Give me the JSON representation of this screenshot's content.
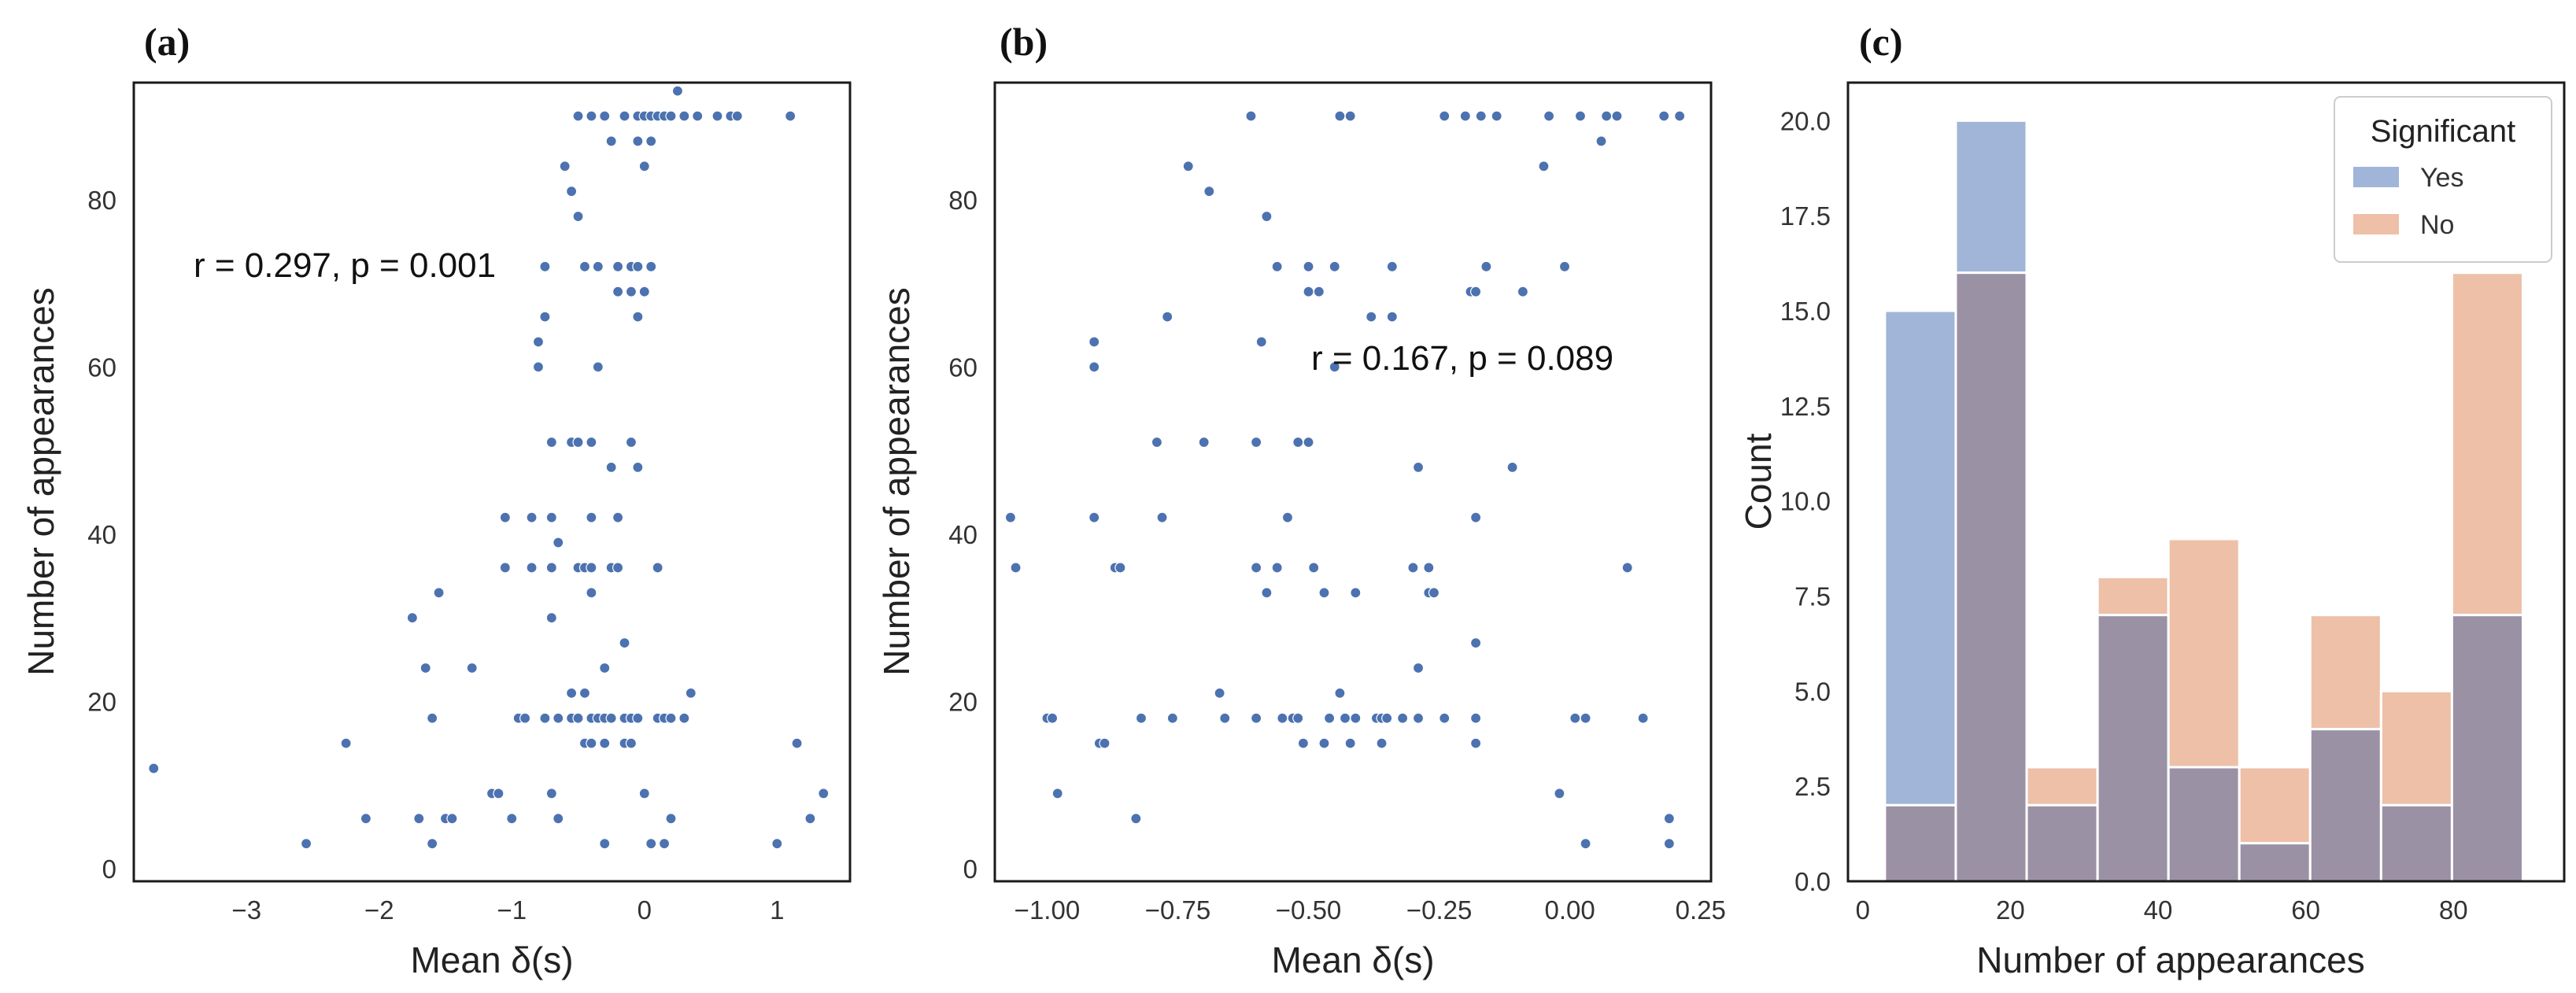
{
  "chart_data": [
    {
      "type": "scatter",
      "panel_label": "(a)",
      "xlabel": "Mean δ(s)",
      "ylabel": "Number of appearances",
      "xlim": [
        -3.85,
        1.55
      ],
      "ylim": [
        -1.5,
        94
      ],
      "xticks": [
        -3,
        -2,
        -1,
        0,
        1
      ],
      "yticks": [
        0,
        20,
        40,
        60,
        80
      ],
      "annotation": "r = 0.297, p = 0.001",
      "marker_color": "#4c72b0",
      "points": [
        [
          -3.7,
          12
        ],
        [
          -2.55,
          3
        ],
        [
          -2.25,
          15
        ],
        [
          -2.1,
          6
        ],
        [
          -1.75,
          30
        ],
        [
          -1.7,
          6
        ],
        [
          -1.65,
          24
        ],
        [
          -1.6,
          3
        ],
        [
          -1.6,
          18
        ],
        [
          -1.55,
          33
        ],
        [
          -1.5,
          6
        ],
        [
          -1.45,
          6
        ],
        [
          -1.3,
          24
        ],
        [
          -1.15,
          9
        ],
        [
          -1.1,
          9
        ],
        [
          -1.05,
          42
        ],
        [
          -1.05,
          36
        ],
        [
          -1.0,
          6
        ],
        [
          -0.95,
          18
        ],
        [
          -0.9,
          18
        ],
        [
          -0.85,
          36
        ],
        [
          -0.85,
          42
        ],
        [
          -0.8,
          63
        ],
        [
          -0.8,
          60
        ],
        [
          -0.75,
          66
        ],
        [
          -0.75,
          72
        ],
        [
          -0.75,
          18
        ],
        [
          -0.7,
          51
        ],
        [
          -0.7,
          9
        ],
        [
          -0.7,
          42
        ],
        [
          -0.7,
          36
        ],
        [
          -0.7,
          30
        ],
        [
          -0.65,
          6
        ],
        [
          -0.65,
          18
        ],
        [
          -0.65,
          39
        ],
        [
          -0.6,
          84
        ],
        [
          -0.55,
          81
        ],
        [
          -0.55,
          21
        ],
        [
          -0.55,
          18
        ],
        [
          -0.55,
          51
        ],
        [
          -0.5,
          36
        ],
        [
          -0.5,
          78
        ],
        [
          -0.5,
          90
        ],
        [
          -0.5,
          51
        ],
        [
          -0.5,
          18
        ],
        [
          -0.45,
          36
        ],
        [
          -0.45,
          15
        ],
        [
          -0.45,
          72
        ],
        [
          -0.45,
          21
        ],
        [
          -0.4,
          90
        ],
        [
          -0.4,
          33
        ],
        [
          -0.4,
          51
        ],
        [
          -0.4,
          18
        ],
        [
          -0.4,
          36
        ],
        [
          -0.4,
          42
        ],
        [
          -0.4,
          15
        ],
        [
          -0.35,
          72
        ],
        [
          -0.35,
          60
        ],
        [
          -0.35,
          18
        ],
        [
          -0.3,
          90
        ],
        [
          -0.3,
          18
        ],
        [
          -0.3,
          24
        ],
        [
          -0.3,
          3
        ],
        [
          -0.3,
          15
        ],
        [
          -0.25,
          87
        ],
        [
          -0.25,
          36
        ],
        [
          -0.25,
          18
        ],
        [
          -0.25,
          48
        ],
        [
          -0.2,
          36
        ],
        [
          -0.2,
          72
        ],
        [
          -0.2,
          42
        ],
        [
          -0.2,
          69
        ],
        [
          -0.15,
          90
        ],
        [
          -0.15,
          27
        ],
        [
          -0.15,
          18
        ],
        [
          -0.15,
          18
        ],
        [
          -0.15,
          15
        ],
        [
          -0.1,
          51
        ],
        [
          -0.1,
          18
        ],
        [
          -0.1,
          69
        ],
        [
          -0.1,
          72
        ],
        [
          -0.1,
          15
        ],
        [
          -0.05,
          90
        ],
        [
          -0.05,
          87
        ],
        [
          -0.05,
          72
        ],
        [
          -0.05,
          18
        ],
        [
          -0.05,
          66
        ],
        [
          -0.05,
          48
        ],
        [
          0.0,
          90
        ],
        [
          0.0,
          84
        ],
        [
          0.0,
          69
        ],
        [
          0.0,
          9
        ],
        [
          0.05,
          87
        ],
        [
          0.05,
          72
        ],
        [
          0.05,
          90
        ],
        [
          0.05,
          3
        ],
        [
          0.1,
          90
        ],
        [
          0.1,
          36
        ],
        [
          0.1,
          18
        ],
        [
          0.15,
          90
        ],
        [
          0.15,
          18
        ],
        [
          0.15,
          3
        ],
        [
          0.2,
          90
        ],
        [
          0.2,
          18
        ],
        [
          0.2,
          6
        ],
        [
          0.25,
          93
        ],
        [
          0.3,
          90
        ],
        [
          0.3,
          18
        ],
        [
          0.35,
          21
        ],
        [
          0.4,
          90
        ],
        [
          0.55,
          90
        ],
        [
          0.65,
          90
        ],
        [
          0.7,
          90
        ],
        [
          1.0,
          3
        ],
        [
          1.1,
          90
        ],
        [
          1.15,
          15
        ],
        [
          1.25,
          6
        ],
        [
          1.35,
          9
        ]
      ]
    },
    {
      "type": "scatter",
      "panel_label": "(b)",
      "xlabel": "Mean δ(s)",
      "ylabel": "Number of appearances",
      "xlim": [
        -1.1,
        0.27
      ],
      "ylim": [
        -1.5,
        94
      ],
      "xticks": [
        -1.0,
        -0.75,
        -0.5,
        -0.25,
        0.0,
        0.25
      ],
      "xtick_labels": [
        "−1.00",
        "−0.75",
        "−0.50",
        "−0.25",
        "0.00",
        "0.25"
      ],
      "yticks": [
        0,
        20,
        40,
        60,
        80
      ],
      "annotation": "r = 0.167, p = 0.089",
      "marker_color": "#4c72b0",
      "points": [
        [
          -1.07,
          42
        ],
        [
          -1.06,
          36
        ],
        [
          -1.0,
          18
        ],
        [
          -0.99,
          18
        ],
        [
          -0.98,
          9
        ],
        [
          -0.91,
          63
        ],
        [
          -0.91,
          60
        ],
        [
          -0.91,
          42
        ],
        [
          -0.9,
          15
        ],
        [
          -0.89,
          15
        ],
        [
          -0.87,
          36
        ],
        [
          -0.86,
          36
        ],
        [
          -0.83,
          6
        ],
        [
          -0.82,
          18
        ],
        [
          -0.79,
          51
        ],
        [
          -0.78,
          42
        ],
        [
          -0.77,
          66
        ],
        [
          -0.76,
          18
        ],
        [
          -0.73,
          84
        ],
        [
          -0.7,
          51
        ],
        [
          -0.69,
          81
        ],
        [
          -0.67,
          21
        ],
        [
          -0.66,
          18
        ],
        [
          -0.61,
          90
        ],
        [
          -0.6,
          51
        ],
        [
          -0.6,
          36
        ],
        [
          -0.6,
          18
        ],
        [
          -0.59,
          63
        ],
        [
          -0.58,
          78
        ],
        [
          -0.58,
          33
        ],
        [
          -0.56,
          72
        ],
        [
          -0.56,
          36
        ],
        [
          -0.55,
          18
        ],
        [
          -0.54,
          42
        ],
        [
          -0.53,
          18
        ],
        [
          -0.52,
          51
        ],
        [
          -0.52,
          18
        ],
        [
          -0.51,
          15
        ],
        [
          -0.5,
          72
        ],
        [
          -0.5,
          69
        ],
        [
          -0.5,
          51
        ],
        [
          -0.49,
          36
        ],
        [
          -0.48,
          69
        ],
        [
          -0.47,
          15
        ],
        [
          -0.47,
          33
        ],
        [
          -0.46,
          18
        ],
        [
          -0.45,
          72
        ],
        [
          -0.45,
          60
        ],
        [
          -0.44,
          90
        ],
        [
          -0.44,
          21
        ],
        [
          -0.43,
          18
        ],
        [
          -0.42,
          90
        ],
        [
          -0.42,
          15
        ],
        [
          -0.41,
          33
        ],
        [
          -0.41,
          18
        ],
        [
          -0.38,
          66
        ],
        [
          -0.37,
          18
        ],
        [
          -0.36,
          18
        ],
        [
          -0.36,
          15
        ],
        [
          -0.35,
          18
        ],
        [
          -0.34,
          72
        ],
        [
          -0.34,
          66
        ],
        [
          -0.32,
          18
        ],
        [
          -0.3,
          36
        ],
        [
          -0.29,
          48
        ],
        [
          -0.29,
          24
        ],
        [
          -0.29,
          18
        ],
        [
          -0.27,
          36
        ],
        [
          -0.27,
          33
        ],
        [
          -0.26,
          33
        ],
        [
          -0.24,
          90
        ],
        [
          -0.24,
          18
        ],
        [
          -0.2,
          90
        ],
        [
          -0.19,
          69
        ],
        [
          -0.18,
          69
        ],
        [
          -0.18,
          42
        ],
        [
          -0.18,
          27
        ],
        [
          -0.18,
          18
        ],
        [
          -0.18,
          15
        ],
        [
          -0.17,
          90
        ],
        [
          -0.16,
          72
        ],
        [
          -0.14,
          90
        ],
        [
          -0.11,
          48
        ],
        [
          -0.09,
          69
        ],
        [
          -0.05,
          84
        ],
        [
          -0.04,
          90
        ],
        [
          -0.02,
          9
        ],
        [
          -0.01,
          72
        ],
        [
          0.01,
          18
        ],
        [
          0.02,
          90
        ],
        [
          0.03,
          18
        ],
        [
          0.03,
          3
        ],
        [
          0.06,
          87
        ],
        [
          0.07,
          90
        ],
        [
          0.09,
          90
        ],
        [
          0.11,
          36
        ],
        [
          0.14,
          18
        ],
        [
          0.18,
          90
        ],
        [
          0.19,
          6
        ],
        [
          0.19,
          3
        ],
        [
          0.21,
          90
        ]
      ]
    },
    {
      "type": "histogram",
      "panel_label": "(c)",
      "xlabel": "Number of appearances",
      "ylabel": "Count",
      "xlim": [
        -2,
        95
      ],
      "ylim": [
        0,
        21
      ],
      "xticks": [
        0,
        20,
        40,
        60,
        80
      ],
      "yticks": [
        0.0,
        2.5,
        5.0,
        7.5,
        10.0,
        12.5,
        15.0,
        17.5,
        20.0
      ],
      "ytick_labels": [
        "0.0",
        "2.5",
        "5.0",
        "7.5",
        "10.0",
        "12.5",
        "15.0",
        "17.5",
        "20.0"
      ],
      "bin_edges": [
        3,
        12.6,
        22.2,
        31.8,
        41.4,
        51,
        60.6,
        70.2,
        79.8,
        89.4
      ],
      "series": [
        {
          "name": "Yes",
          "color": "#a1b5d8",
          "values": [
            15,
            20,
            2,
            7,
            3,
            1,
            4,
            2,
            7
          ]
        },
        {
          "name": "No",
          "color": "#eec0a8",
          "values": [
            2,
            16,
            3,
            8,
            9,
            3,
            7,
            5,
            16
          ]
        }
      ],
      "overlap_color": "#9b91a5",
      "legend": {
        "title": "Significant",
        "location": "top-right"
      }
    }
  ]
}
